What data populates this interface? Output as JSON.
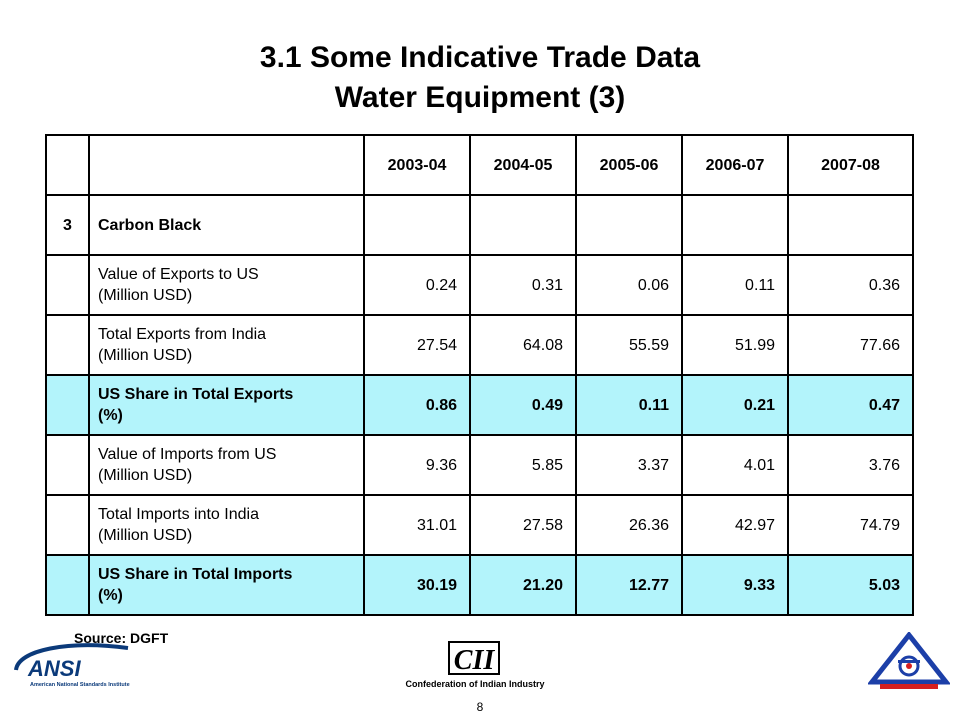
{
  "title": {
    "line1": "3.1 Some Indicative Trade Data",
    "line2": "Water Equipment (3)"
  },
  "table": {
    "years": [
      "2003-04",
      "2004-05",
      "2005-06",
      "2006-07",
      "2007-08"
    ],
    "section": {
      "index": "3",
      "label": "Carbon Black"
    },
    "rows": [
      {
        "label_line1": "Value of Exports to US",
        "label_line2": "(Million USD)",
        "values": [
          "0.24",
          "0.31",
          "0.06",
          "0.11",
          "0.36"
        ],
        "highlight": false
      },
      {
        "label_line1": "Total Exports from India",
        "label_line2": "(Million USD)",
        "values": [
          "27.54",
          "64.08",
          "55.59",
          "51.99",
          "77.66"
        ],
        "highlight": false
      },
      {
        "label_line1": "US Share in Total Exports",
        "label_line2": "(%)",
        "values": [
          "0.86",
          "0.49",
          "0.11",
          "0.21",
          "0.47"
        ],
        "highlight": true
      },
      {
        "label_line1": "Value of Imports from US",
        "label_line2": "(Million USD)",
        "values": [
          "9.36",
          "5.85",
          "3.37",
          "4.01",
          "3.76"
        ],
        "highlight": false
      },
      {
        "label_line1": "Total Imports into India",
        "label_line2": "(Million USD)",
        "values": [
          "31.01",
          "27.58",
          "26.36",
          "42.97",
          "74.79"
        ],
        "highlight": false
      },
      {
        "label_line1": "US Share in Total Imports",
        "label_line2": "(%)",
        "values": [
          "30.19",
          "21.20",
          "12.77",
          "9.33",
          "5.03"
        ],
        "highlight": true
      }
    ]
  },
  "source": "Source: DGFT",
  "page_number": "8",
  "logos": {
    "ansi": {
      "text": "ANSI",
      "subtitle": "American National Standards Institute",
      "color": "#0b3a7a"
    },
    "cii": {
      "text": "CII",
      "subtitle": "Confederation of Indian Industry"
    },
    "bis": {
      "color": "#1c3fa8",
      "accent": "#d61f1f"
    }
  },
  "colors": {
    "highlight_row": "#b3f4fb"
  }
}
